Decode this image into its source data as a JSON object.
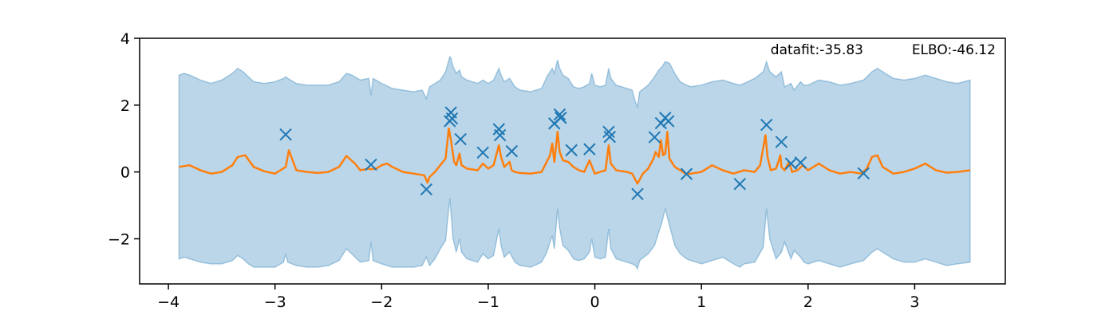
{
  "chart_data": {
    "type": "line",
    "title": "",
    "xlabel": "",
    "ylabel": "",
    "xlim": [
      -4.27,
      3.85
    ],
    "ylim": [
      -3.35,
      4.0
    ],
    "xticks": [
      -4,
      -3,
      -2,
      -1,
      0,
      1,
      2,
      3
    ],
    "xtick_labels": [
      "−4",
      "−3",
      "−2",
      "−1",
      "0",
      "1",
      "2",
      "3"
    ],
    "yticks": [
      -2,
      0,
      2,
      4
    ],
    "ytick_labels": [
      "−2",
      "0",
      "2",
      "4"
    ],
    "grid": false,
    "legend": "none",
    "annotations": {
      "datafit": "datafit:-35.83",
      "elbo": "ELBO:-46.12"
    },
    "colors": {
      "observations": "#1f77b4",
      "mean": "#ff7f0e",
      "band_fill": "#1f77b4"
    },
    "series": [
      {
        "kind": "scatter",
        "marker": "x",
        "points": [
          [
            -2.9,
            1.12
          ],
          [
            -2.1,
            0.22
          ],
          [
            -1.58,
            -0.52
          ],
          [
            -1.36,
            1.52
          ],
          [
            -1.35,
            1.78
          ],
          [
            -1.34,
            1.6
          ],
          [
            -1.26,
            0.98
          ],
          [
            -1.05,
            0.58
          ],
          [
            -0.9,
            1.28
          ],
          [
            -0.89,
            1.1
          ],
          [
            -0.78,
            0.62
          ],
          [
            -0.38,
            1.45
          ],
          [
            -0.33,
            1.72
          ],
          [
            -0.32,
            1.62
          ],
          [
            -0.22,
            0.65
          ],
          [
            -0.05,
            0.68
          ],
          [
            0.13,
            1.2
          ],
          [
            0.14,
            1.05
          ],
          [
            0.4,
            -0.66
          ],
          [
            0.56,
            1.04
          ],
          [
            0.62,
            1.46
          ],
          [
            0.66,
            1.62
          ],
          [
            0.69,
            1.52
          ],
          [
            0.86,
            -0.06
          ],
          [
            1.36,
            -0.36
          ],
          [
            1.61,
            1.41
          ],
          [
            1.75,
            0.9
          ],
          [
            1.84,
            0.25
          ],
          [
            1.93,
            0.28
          ],
          [
            2.52,
            -0.04
          ]
        ]
      },
      {
        "kind": "line",
        "x": [
          -3.9,
          -3.8,
          -3.7,
          -3.6,
          -3.5,
          -3.4,
          -3.35,
          -3.28,
          -3.2,
          -3.1,
          -3.0,
          -2.95,
          -2.9,
          -2.87,
          -2.8,
          -2.7,
          -2.6,
          -2.5,
          -2.4,
          -2.33,
          -2.25,
          -2.2,
          -2.12,
          -2.1,
          -2.05,
          -2.0,
          -1.95,
          -1.9,
          -1.8,
          -1.7,
          -1.6,
          -1.57,
          -1.55,
          -1.5,
          -1.45,
          -1.4,
          -1.37,
          -1.35,
          -1.32,
          -1.3,
          -1.27,
          -1.25,
          -1.2,
          -1.1,
          -1.05,
          -1.0,
          -0.95,
          -0.9,
          -0.88,
          -0.85,
          -0.8,
          -0.78,
          -0.75,
          -0.7,
          -0.6,
          -0.5,
          -0.42,
          -0.4,
          -0.38,
          -0.35,
          -0.33,
          -0.3,
          -0.25,
          -0.2,
          -0.15,
          -0.1,
          -0.05,
          -0.02,
          0.0,
          0.05,
          0.1,
          0.13,
          0.15,
          0.2,
          0.3,
          0.35,
          0.4,
          0.45,
          0.5,
          0.55,
          0.57,
          0.6,
          0.62,
          0.64,
          0.66,
          0.68,
          0.7,
          0.75,
          0.8,
          0.85,
          0.9,
          1.0,
          1.1,
          1.2,
          1.3,
          1.4,
          1.5,
          1.55,
          1.6,
          1.62,
          1.65,
          1.7,
          1.74,
          1.75,
          1.78,
          1.82,
          1.85,
          1.9,
          1.95,
          2.0,
          2.1,
          2.2,
          2.3,
          2.4,
          2.5,
          2.55,
          2.6,
          2.65,
          2.7,
          2.8,
          2.9,
          3.0,
          3.1,
          3.2,
          3.3,
          3.4,
          3.52
        ],
        "y": [
          0.15,
          0.2,
          0.05,
          -0.05,
          0.0,
          0.2,
          0.45,
          0.5,
          0.15,
          0.02,
          -0.05,
          0.05,
          0.15,
          0.65,
          0.05,
          0.0,
          -0.03,
          0.0,
          0.15,
          0.48,
          0.25,
          0.05,
          0.1,
          0.08,
          0.1,
          0.2,
          0.25,
          0.15,
          0.0,
          -0.05,
          -0.1,
          -0.32,
          -0.15,
          0.0,
          0.2,
          0.4,
          1.3,
          0.95,
          0.3,
          0.2,
          0.55,
          0.2,
          0.1,
          0.05,
          0.25,
          0.1,
          0.2,
          0.8,
          0.45,
          0.15,
          0.3,
          0.05,
          0.0,
          -0.03,
          -0.05,
          0.0,
          0.5,
          0.85,
          0.3,
          1.2,
          0.6,
          0.35,
          0.3,
          0.15,
          0.05,
          0.0,
          0.35,
          0.1,
          -0.05,
          0.0,
          0.05,
          0.8,
          0.25,
          0.05,
          0.0,
          -0.05,
          -0.35,
          -0.05,
          0.1,
          0.4,
          0.6,
          0.45,
          0.95,
          0.5,
          0.55,
          1.2,
          0.4,
          0.15,
          0.05,
          -0.05,
          -0.05,
          0.0,
          0.2,
          0.05,
          -0.05,
          0.05,
          0.0,
          0.2,
          1.1,
          0.45,
          0.05,
          0.1,
          0.5,
          0.15,
          0.05,
          0.3,
          0.0,
          0.05,
          0.2,
          0.05,
          0.25,
          0.05,
          -0.05,
          0.0,
          -0.05,
          0.1,
          0.45,
          0.5,
          0.15,
          -0.05,
          0.0,
          0.1,
          0.25,
          0.05,
          -0.02,
          0.0,
          0.05
        ]
      },
      {
        "kind": "band",
        "x": [
          -3.9,
          -3.85,
          -3.8,
          -3.7,
          -3.6,
          -3.5,
          -3.4,
          -3.35,
          -3.3,
          -3.25,
          -3.2,
          -3.1,
          -3.0,
          -2.92,
          -2.9,
          -2.88,
          -2.8,
          -2.7,
          -2.6,
          -2.5,
          -2.4,
          -2.33,
          -2.28,
          -2.2,
          -2.12,
          -2.1,
          -2.08,
          -2.0,
          -1.9,
          -1.8,
          -1.7,
          -1.62,
          -1.58,
          -1.55,
          -1.5,
          -1.45,
          -1.4,
          -1.36,
          -1.35,
          -1.33,
          -1.3,
          -1.27,
          -1.25,
          -1.2,
          -1.1,
          -1.05,
          -1.0,
          -0.95,
          -0.9,
          -0.88,
          -0.85,
          -0.8,
          -0.75,
          -0.7,
          -0.6,
          -0.5,
          -0.45,
          -0.4,
          -0.38,
          -0.35,
          -0.33,
          -0.3,
          -0.25,
          -0.22,
          -0.2,
          -0.15,
          -0.1,
          -0.05,
          -0.03,
          0.0,
          0.05,
          0.1,
          0.13,
          0.15,
          0.2,
          0.3,
          0.35,
          0.38,
          0.4,
          0.42,
          0.5,
          0.56,
          0.6,
          0.63,
          0.66,
          0.7,
          0.75,
          0.8,
          0.86,
          0.9,
          1.0,
          1.1,
          1.2,
          1.3,
          1.36,
          1.4,
          1.5,
          1.58,
          1.61,
          1.64,
          1.7,
          1.75,
          1.78,
          1.84,
          1.87,
          1.93,
          1.96,
          2.0,
          2.1,
          2.2,
          2.3,
          2.4,
          2.52,
          2.6,
          2.65,
          2.7,
          2.8,
          2.9,
          3.0,
          3.1,
          3.2,
          3.3,
          3.4,
          3.52
        ],
        "upper": [
          2.9,
          2.95,
          2.9,
          2.75,
          2.65,
          2.75,
          2.95,
          3.1,
          3.0,
          2.85,
          2.7,
          2.65,
          2.7,
          2.8,
          2.85,
          2.8,
          2.65,
          2.6,
          2.6,
          2.6,
          2.7,
          2.95,
          2.9,
          2.75,
          2.8,
          2.3,
          2.8,
          2.65,
          2.5,
          2.45,
          2.4,
          2.45,
          2.2,
          2.55,
          2.65,
          2.75,
          3.0,
          3.45,
          3.4,
          3.15,
          2.95,
          3.05,
          2.85,
          2.75,
          2.65,
          2.75,
          2.65,
          2.75,
          3.1,
          2.9,
          2.7,
          2.8,
          2.55,
          2.45,
          2.4,
          2.5,
          2.85,
          3.1,
          2.95,
          3.35,
          3.1,
          2.9,
          2.8,
          2.65,
          2.55,
          2.5,
          2.55,
          2.65,
          2.95,
          2.6,
          2.55,
          2.6,
          3.1,
          2.8,
          2.6,
          2.5,
          2.45,
          2.1,
          1.95,
          2.4,
          2.6,
          2.85,
          3.05,
          3.15,
          3.3,
          3.25,
          2.95,
          2.7,
          2.6,
          2.55,
          2.6,
          2.7,
          2.75,
          2.65,
          2.6,
          2.65,
          2.8,
          3.0,
          3.3,
          3.0,
          2.85,
          3.0,
          2.55,
          2.65,
          2.45,
          2.7,
          2.6,
          2.6,
          2.75,
          2.7,
          2.6,
          2.65,
          2.75,
          3.0,
          3.1,
          3.0,
          2.8,
          2.75,
          2.8,
          2.9,
          2.8,
          2.7,
          2.65,
          2.75
        ],
        "lower": [
          -2.6,
          -2.55,
          -2.6,
          -2.7,
          -2.75,
          -2.75,
          -2.65,
          -2.5,
          -2.6,
          -2.75,
          -2.85,
          -2.85,
          -2.85,
          -2.7,
          -2.45,
          -2.7,
          -2.8,
          -2.85,
          -2.85,
          -2.8,
          -2.65,
          -2.3,
          -2.45,
          -2.7,
          -2.65,
          -2.1,
          -2.65,
          -2.75,
          -2.85,
          -2.85,
          -2.85,
          -2.8,
          -2.55,
          -2.8,
          -2.6,
          -2.3,
          -2.05,
          -0.8,
          -1.2,
          -2.0,
          -2.4,
          -2.0,
          -2.4,
          -2.6,
          -2.7,
          -2.45,
          -2.6,
          -2.5,
          -1.7,
          -2.2,
          -2.55,
          -2.4,
          -2.7,
          -2.8,
          -2.85,
          -2.7,
          -2.4,
          -1.9,
          -2.3,
          -1.1,
          -1.7,
          -2.2,
          -2.35,
          -2.5,
          -2.6,
          -2.65,
          -2.6,
          -2.4,
          -2.0,
          -2.55,
          -2.6,
          -2.55,
          -1.7,
          -2.3,
          -2.6,
          -2.7,
          -2.75,
          -2.8,
          -2.9,
          -2.65,
          -2.45,
          -2.2,
          -1.8,
          -1.5,
          -1.1,
          -1.6,
          -2.2,
          -2.45,
          -2.6,
          -2.65,
          -2.75,
          -2.65,
          -2.55,
          -2.75,
          -2.85,
          -2.75,
          -2.7,
          -2.25,
          -1.1,
          -2.0,
          -2.6,
          -2.4,
          -2.1,
          -2.6,
          -2.35,
          -2.55,
          -2.7,
          -2.75,
          -2.65,
          -2.75,
          -2.85,
          -2.75,
          -2.65,
          -2.4,
          -2.3,
          -2.4,
          -2.6,
          -2.7,
          -2.7,
          -2.6,
          -2.7,
          -2.8,
          -2.75,
          -2.7
        ]
      }
    ]
  }
}
